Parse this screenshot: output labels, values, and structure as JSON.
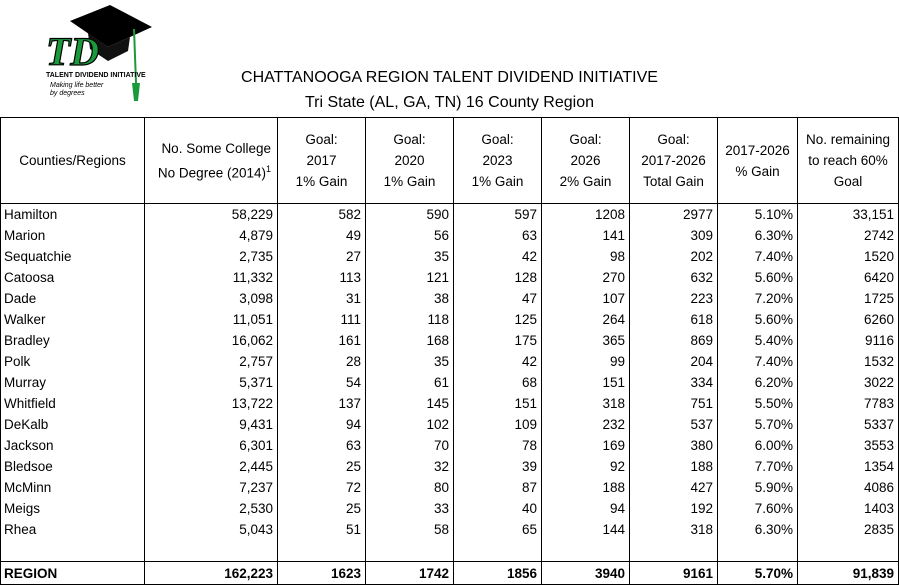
{
  "logo": {
    "letters": "TD",
    "org": "TALENT DIVIDEND INITIATIVE",
    "tagline1": "Making life better",
    "tagline2": "by degrees"
  },
  "title": "CHATTANOOGA REGION TALENT DIVIDEND INITIATIVE",
  "subtitle": "Tri State (AL, GA, TN) 16 County Region",
  "headers": [
    [
      "Counties/Regions"
    ],
    [
      "No. Some College",
      "No Degree (2014)",
      "1"
    ],
    [
      "Goal:",
      "2017",
      "1% Gain"
    ],
    [
      "Goal:",
      "2020",
      "1% Gain"
    ],
    [
      "Goal:",
      "2023",
      "1% Gain"
    ],
    [
      "Goal:",
      "2026",
      "2% Gain"
    ],
    [
      "Goal:",
      "2017-2026",
      "Total Gain"
    ],
    [
      "2017-2026",
      "% Gain"
    ],
    [
      "No. remaining",
      "to reach 60%",
      "Goal"
    ]
  ],
  "rows": [
    [
      "Hamilton",
      "58,229",
      "582",
      "590",
      "597",
      "1208",
      "2977",
      "5.10%",
      "33,151"
    ],
    [
      "Marion",
      "4,879",
      "49",
      "56",
      "63",
      "141",
      "309",
      "6.30%",
      "2742"
    ],
    [
      "Sequatchie",
      "2,735",
      "27",
      "35",
      "42",
      "98",
      "202",
      "7.40%",
      "1520"
    ],
    [
      "Catoosa",
      "11,332",
      "113",
      "121",
      "128",
      "270",
      "632",
      "5.60%",
      "6420"
    ],
    [
      "Dade",
      "3,098",
      "31",
      "38",
      "47",
      "107",
      "223",
      "7.20%",
      "1725"
    ],
    [
      "Walker",
      "11,051",
      "111",
      "118",
      "125",
      "264",
      "618",
      "5.60%",
      "6260"
    ],
    [
      "Bradley",
      "16,062",
      "161",
      "168",
      "175",
      "365",
      "869",
      "5.40%",
      "9116"
    ],
    [
      "Polk",
      "2,757",
      "28",
      "35",
      "42",
      "99",
      "204",
      "7.40%",
      "1532"
    ],
    [
      "Murray",
      "5,371",
      "54",
      "61",
      "68",
      "151",
      "334",
      "6.20%",
      "3022"
    ],
    [
      "Whitfield",
      "13,722",
      "137",
      "145",
      "151",
      "318",
      "751",
      "5.50%",
      "7783"
    ],
    [
      "DeKalb",
      "9,431",
      "94",
      "102",
      "109",
      "232",
      "537",
      "5.70%",
      "5337"
    ],
    [
      "Jackson",
      "6,301",
      "63",
      "70",
      "78",
      "169",
      "380",
      "6.00%",
      "3553"
    ],
    [
      "Bledsoe",
      "2,445",
      "25",
      "32",
      "39",
      "92",
      "188",
      "7.70%",
      "1354"
    ],
    [
      "McMinn",
      "7,237",
      "72",
      "80",
      "87",
      "188",
      "427",
      "5.90%",
      "4086"
    ],
    [
      "Meigs",
      "2,530",
      "25",
      "33",
      "40",
      "94",
      "192",
      "7.60%",
      "1403"
    ],
    [
      "Rhea",
      "5,043",
      "51",
      "58",
      "65",
      "144",
      "318",
      "6.30%",
      "2835"
    ]
  ],
  "total": [
    "REGION",
    "162,223",
    "1623",
    "1742",
    "1856",
    "3940",
    "9161",
    "5.70%",
    "91,839"
  ],
  "colors": {
    "logo_green": "#1a9a3a",
    "logo_black": "#000000"
  }
}
